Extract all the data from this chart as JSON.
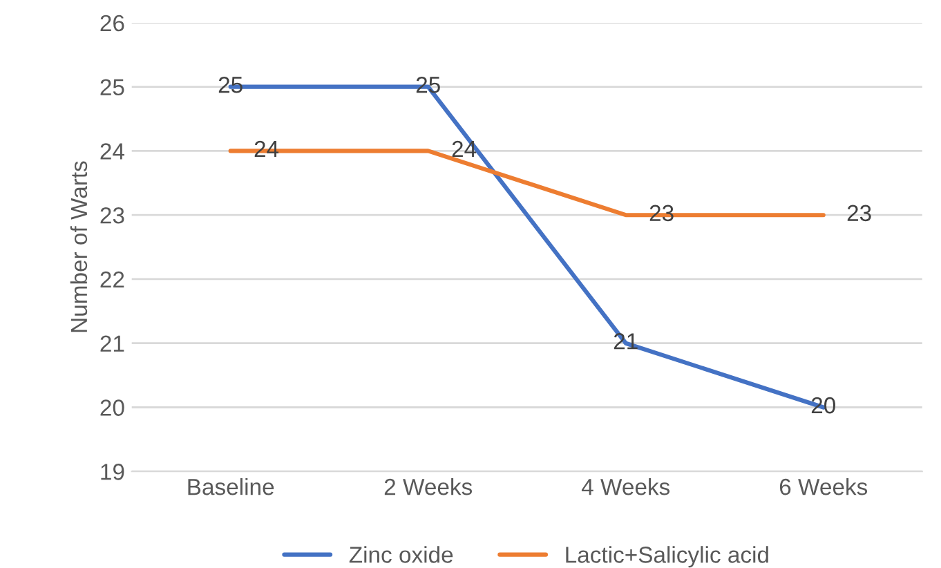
{
  "chart_data": {
    "type": "line",
    "ylabel": "Number of Warts",
    "categories": [
      "Baseline",
      "2 Weeks",
      "4 Weeks",
      "6 Weeks"
    ],
    "series": [
      {
        "name": "Zinc oxide",
        "color": "#4472c4",
        "values": [
          25,
          25,
          21,
          20
        ]
      },
      {
        "name": "Lactic+Salicylic acid",
        "color": "#ed7d31",
        "values": [
          24,
          24,
          23,
          23
        ]
      }
    ],
    "ylim": [
      19,
      26
    ],
    "yticks": [
      19,
      20,
      21,
      22,
      23,
      24,
      25,
      26
    ],
    "grid": "y",
    "legend": "bottom",
    "data_labels": true,
    "marker": "none",
    "line_style": "solid"
  }
}
